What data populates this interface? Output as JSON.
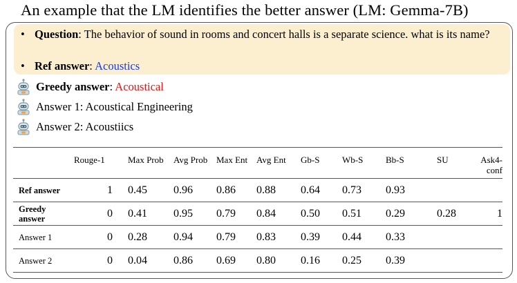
{
  "title": "An example that the LM  identifies the better answer (LM: Gemma-7B)",
  "question": {
    "label": "Question",
    "text": ": The behavior of sound in rooms and concert halls is a separate science. what is its name?"
  },
  "ref_answer": {
    "label": "Ref answer",
    "sep": ": ",
    "value": "Acoustics"
  },
  "greedy_answer": {
    "label": "Greedy answer",
    "sep": ": ",
    "value": "Acoustical"
  },
  "answer1": {
    "text": "Answer 1: Acoustical Engineering"
  },
  "answer2": {
    "text": "Answer 2: Acoustiics"
  },
  "colors": {
    "highlight_bg": "#fbefcf",
    "ref_value": "#1a3bd6",
    "greedy_value": "#e01515"
  },
  "icons": {
    "answer_icon": "robot-icon"
  },
  "table": {
    "headers": [
      "",
      "Rouge-1",
      "Max Prob",
      "Avg Prob",
      "Max Ent",
      "Avg Ent",
      "Gb-S",
      "Wb-S",
      "Bb-S",
      "SU",
      "Ask4-conf"
    ],
    "rows": [
      {
        "label": "Ref answer",
        "cells": [
          "1",
          "0.45",
          "0.96",
          "0.86",
          "0.88",
          "0.64",
          "0.73",
          "0.93",
          "",
          ""
        ]
      },
      {
        "label": "Greedy answer",
        "cells": [
          "0",
          "0.41",
          "0.95",
          "0.79",
          "0.84",
          "0.50",
          "0.51",
          "0.29",
          "0.28",
          "1"
        ]
      },
      {
        "label": "Answer 1",
        "cells": [
          "0",
          "0.28",
          "0.94",
          "0.79",
          "0.83",
          "0.39",
          "0.44",
          "0.33",
          "",
          ""
        ]
      },
      {
        "label": "Answer 2",
        "cells": [
          "0",
          "0.04",
          "0.86",
          "0.69",
          "0.80",
          "0.16",
          "0.25",
          "0.39",
          "",
          ""
        ]
      }
    ]
  }
}
